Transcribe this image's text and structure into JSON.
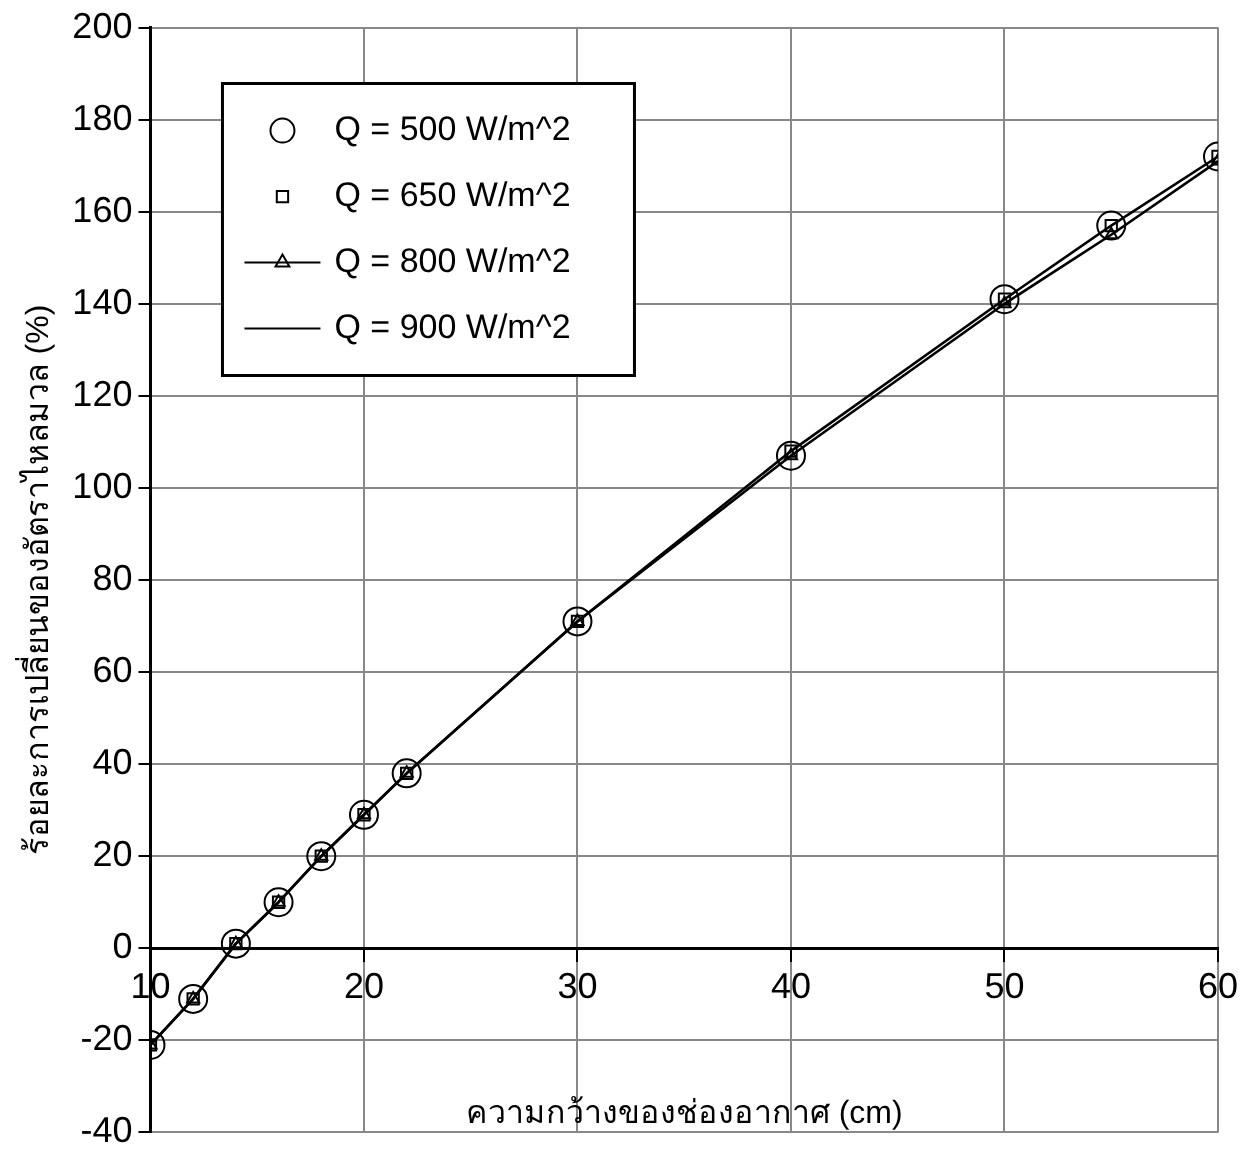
{
  "chart_data": {
    "type": "line",
    "xlabel": "ความกว้างของช่องอากาศ (cm)",
    "ylabel": "ร้อยละการเปลี่ยนของอัตราไหลมวล (%)",
    "x": [
      10,
      12,
      14,
      16,
      18,
      20,
      22,
      30,
      40,
      50,
      55,
      60
    ],
    "series": [
      {
        "name": "Q = 500 W/m^2",
        "type": "scatter",
        "marker": "circle",
        "color": "#000000",
        "values": [
          -21,
          -11,
          1,
          10,
          20,
          29,
          38,
          71,
          107,
          141,
          157,
          172
        ]
      },
      {
        "name": "Q = 650 W/m^2",
        "type": "scatter",
        "marker": "square",
        "color": "#000000",
        "values": [
          -21,
          -11,
          1,
          10,
          20,
          29,
          38,
          71,
          108,
          141,
          157,
          172
        ]
      },
      {
        "name": "Q = 800 W/m^2",
        "marker": "triangle",
        "color": "#000000",
        "values": [
          -21,
          -11,
          1,
          10,
          20,
          29,
          38,
          71,
          107,
          140,
          155,
          171
        ]
      },
      {
        "name": "Q = 900 W/m^2",
        "marker": "none",
        "color": "#000000",
        "values": [
          -21,
          -11,
          1,
          10,
          20,
          29,
          38,
          71,
          108,
          141,
          157,
          172
        ]
      }
    ],
    "xlim": [
      10,
      60
    ],
    "xticks": [
      10,
      20,
      30,
      40,
      50,
      60
    ],
    "ylim": [
      -40,
      200
    ],
    "yticks": [
      -40,
      -20,
      0,
      20,
      40,
      60,
      80,
      100,
      120,
      140,
      160,
      180,
      200
    ],
    "grid": true,
    "legend": "top left"
  }
}
